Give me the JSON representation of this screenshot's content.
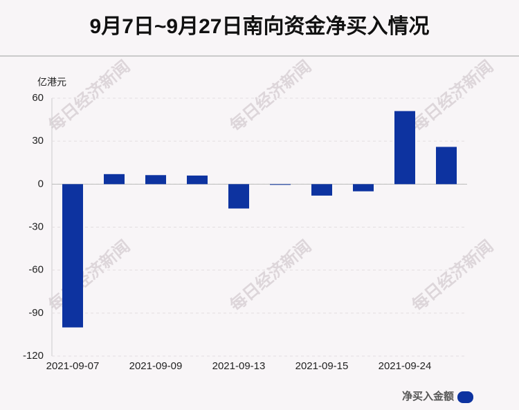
{
  "chart_data": {
    "type": "bar",
    "title": "9月7日~9月27日南向资金净买入情况",
    "y_unit": "亿港元",
    "watermark": "每日经济新闻",
    "categories": [
      "2021-09-07",
      null,
      "2021-09-09",
      null,
      "2021-09-13",
      null,
      "2021-09-15",
      null,
      "2021-09-24",
      null
    ],
    "series": [
      {
        "name": "净买入金额",
        "color": "#0d33a0",
        "values": [
          -100,
          7,
          6.3,
          6,
          -17,
          -0.5,
          -8,
          -5,
          51,
          26
        ]
      }
    ],
    "ylim": [
      -120,
      60
    ],
    "yticks": [
      -120,
      -90,
      -60,
      -30,
      0,
      30,
      60
    ],
    "grid": true,
    "legend": "bottom-right"
  }
}
